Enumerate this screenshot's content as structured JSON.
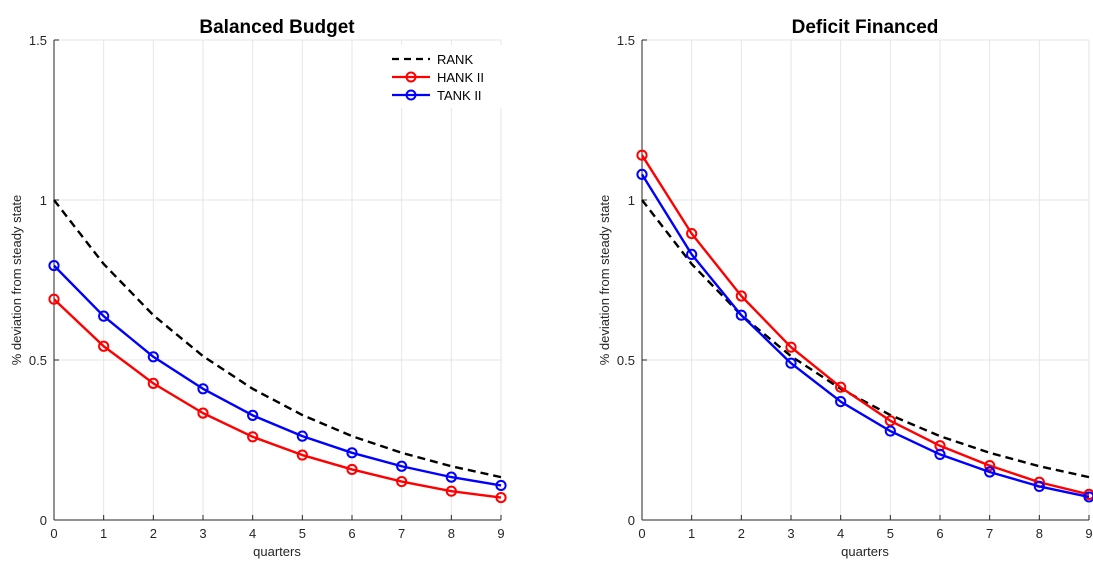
{
  "chart_data": [
    {
      "type": "line",
      "title": "Balanced Budget",
      "xlabel": "quarters",
      "ylabel": "% deviation from steady state",
      "xlim": [
        0,
        9
      ],
      "ylim": [
        0,
        1.5
      ],
      "xticks": [
        "0",
        "1",
        "2",
        "3",
        "4",
        "5",
        "6",
        "7",
        "8",
        "9"
      ],
      "yticks": [
        "0",
        "0.5",
        "1",
        "1.5"
      ],
      "grid": true,
      "legend": "top-right",
      "x": [
        0,
        1,
        2,
        3,
        4,
        5,
        6,
        7,
        8,
        9
      ],
      "series": [
        {
          "name": "RANK",
          "color": "#000000",
          "style": "dashed",
          "marker": "none",
          "values": [
            1.0,
            0.8,
            0.64,
            0.512,
            0.41,
            0.328,
            0.262,
            0.21,
            0.168,
            0.134
          ]
        },
        {
          "name": "HANK II",
          "color": "#ff0000",
          "style": "solid",
          "marker": "circle",
          "values": [
            0.69,
            0.543,
            0.427,
            0.334,
            0.26,
            0.203,
            0.158,
            0.12,
            0.09,
            0.07
          ]
        },
        {
          "name": "TANK II",
          "color": "#0000ff",
          "style": "solid",
          "marker": "circle",
          "values": [
            0.795,
            0.637,
            0.51,
            0.41,
            0.327,
            0.262,
            0.21,
            0.168,
            0.134,
            0.108
          ]
        }
      ]
    },
    {
      "type": "line",
      "title": "Deficit Financed",
      "xlabel": "quarters",
      "ylabel": "% deviation from steady state",
      "xlim": [
        0,
        9
      ],
      "ylim": [
        0,
        1.5
      ],
      "xticks": [
        "0",
        "1",
        "2",
        "3",
        "4",
        "5",
        "6",
        "7",
        "8",
        "9"
      ],
      "yticks": [
        "0",
        "0.5",
        "1",
        "1.5"
      ],
      "grid": true,
      "legend": "none",
      "x": [
        0,
        1,
        2,
        3,
        4,
        5,
        6,
        7,
        8,
        9
      ],
      "series": [
        {
          "name": "RANK",
          "color": "#000000",
          "style": "dashed",
          "marker": "none",
          "values": [
            1.0,
            0.8,
            0.64,
            0.512,
            0.41,
            0.328,
            0.262,
            0.21,
            0.168,
            0.134
          ]
        },
        {
          "name": "HANK II",
          "color": "#ff0000",
          "style": "solid",
          "marker": "circle",
          "values": [
            1.14,
            0.895,
            0.7,
            0.54,
            0.415,
            0.31,
            0.232,
            0.17,
            0.118,
            0.08
          ]
        },
        {
          "name": "TANK II",
          "color": "#0000ff",
          "style": "solid",
          "marker": "circle",
          "values": [
            1.08,
            0.83,
            0.64,
            0.49,
            0.37,
            0.278,
            0.205,
            0.15,
            0.105,
            0.072
          ]
        }
      ]
    }
  ]
}
